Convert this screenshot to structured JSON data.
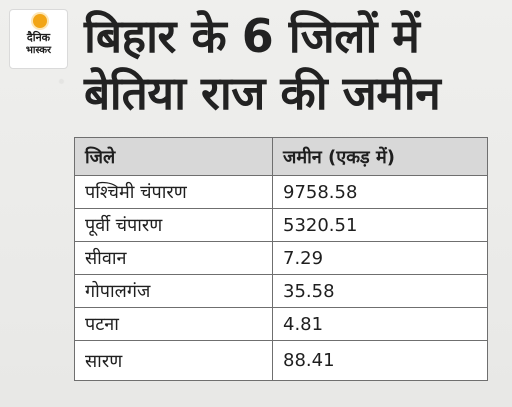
{
  "brand": {
    "line1": "दैनिक",
    "line2": "भास्कर"
  },
  "title": {
    "line1": "बिहार के 6 जिलों में",
    "line2": "बेतिया राज की जमीन"
  },
  "table": {
    "headers": [
      "जिले",
      "जमीन (एकड़ में)"
    ],
    "rows": [
      [
        "पश्चिमी चंपारण",
        "9758.58"
      ],
      [
        "पूर्वी चंपारण",
        "5320.51"
      ],
      [
        "सीवान",
        "7.29"
      ],
      [
        "गोपालगंज",
        "35.58"
      ],
      [
        "पटना",
        "4.81"
      ],
      [
        "सारण",
        "88.41"
      ]
    ]
  },
  "chart_data": {
    "type": "table",
    "title": "बिहार के 6 जिलों में बेतिया राज की जमीन",
    "columns": [
      "जिले",
      "जमीन (एकड़ में)"
    ],
    "categories": [
      "पश्चिमी चंपारण",
      "पूर्वी चंपारण",
      "सीवान",
      "गोपालगंज",
      "पटना",
      "सारण"
    ],
    "values": [
      9758.58,
      5320.51,
      7.29,
      35.58,
      4.81,
      88.41
    ]
  },
  "colors": {
    "background": "#ececea",
    "header_fill": "#d8d8d8",
    "grid": "#6f6f6f",
    "text": "#222222",
    "logo_accent": "#f2a516"
  }
}
